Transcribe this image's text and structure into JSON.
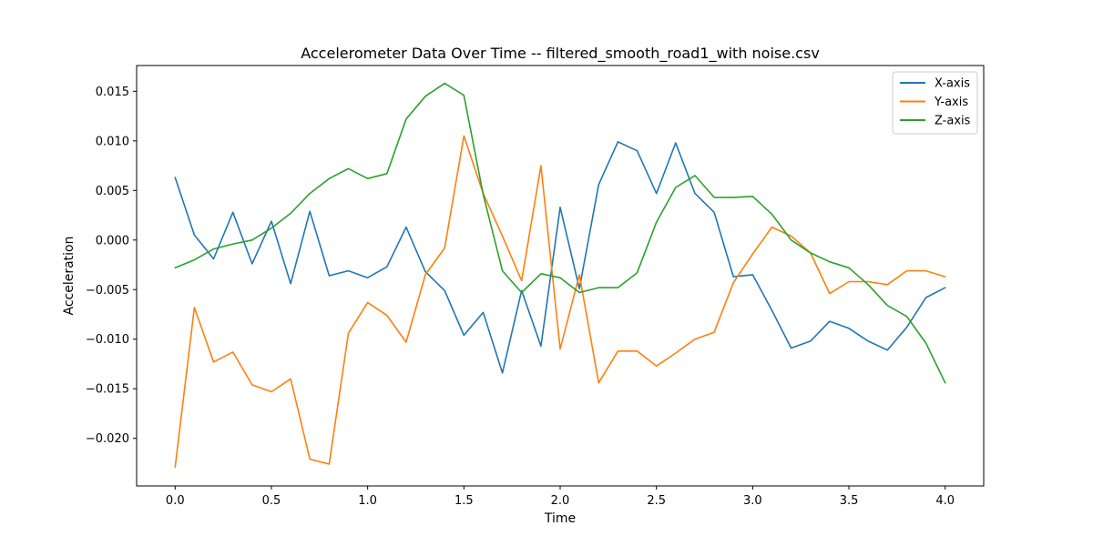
{
  "chart_data": {
    "type": "line",
    "title": "Accelerometer Data Over Time -- filtered_smooth_road1_with noise.csv",
    "xlabel": "Time",
    "ylabel": "Acceleration",
    "xlim": [
      -0.2,
      4.2
    ],
    "ylim": [
      -0.0248,
      0.0176
    ],
    "xticks": [
      0.0,
      0.5,
      1.0,
      1.5,
      2.0,
      2.5,
      3.0,
      3.5,
      4.0
    ],
    "xtick_labels": [
      "0.0",
      "0.5",
      "1.0",
      "1.5",
      "2.0",
      "2.5",
      "3.0",
      "3.5",
      "4.0"
    ],
    "yticks": [
      -0.02,
      -0.015,
      -0.01,
      -0.005,
      0.0,
      0.005,
      0.01,
      0.015
    ],
    "ytick_labels": [
      "−0.020",
      "−0.015",
      "−0.010",
      "−0.005",
      "0.000",
      "0.005",
      "0.010",
      "0.015"
    ],
    "grid": false,
    "legend_position": "top-right",
    "x": [
      0.0,
      0.1,
      0.2,
      0.3,
      0.4,
      0.5,
      0.6,
      0.7,
      0.8,
      0.9,
      1.0,
      1.1,
      1.2,
      1.3,
      1.4,
      1.5,
      1.6,
      1.7,
      1.8,
      1.9,
      2.0,
      2.1,
      2.2,
      2.3,
      2.4,
      2.5,
      2.6,
      2.7,
      2.8,
      2.9,
      3.0,
      3.1,
      3.2,
      3.3,
      3.4,
      3.5,
      3.6,
      3.7,
      3.8,
      3.9,
      4.0
    ],
    "series": [
      {
        "name": "X-axis",
        "color": "#1f77b4",
        "values": [
          0.0063,
          0.0005,
          -0.0019,
          0.0028,
          -0.0024,
          0.0019,
          -0.0044,
          0.0029,
          -0.0036,
          -0.0031,
          -0.0038,
          -0.0027,
          0.0013,
          -0.0032,
          -0.0051,
          -0.0096,
          -0.0073,
          -0.0134,
          -0.0051,
          -0.0107,
          0.0033,
          -0.0049,
          0.0056,
          0.0099,
          0.009,
          0.0047,
          0.0098,
          0.0047,
          0.0028,
          -0.0037,
          -0.0035,
          -0.0071,
          -0.0109,
          -0.0102,
          -0.0082,
          -0.0089,
          -0.0102,
          -0.0111,
          -0.0088,
          -0.0058,
          -0.0048
        ]
      },
      {
        "name": "Y-axis",
        "color": "#ff7f0e",
        "values": [
          -0.0229,
          -0.0068,
          -0.0123,
          -0.0113,
          -0.0146,
          -0.0153,
          -0.014,
          -0.0221,
          -0.0226,
          -0.0094,
          -0.0063,
          -0.0076,
          -0.0103,
          -0.0035,
          -0.0008,
          0.0105,
          0.0047,
          0.0004,
          -0.0041,
          0.0075,
          -0.011,
          -0.0035,
          -0.0144,
          -0.0112,
          -0.0112,
          -0.0127,
          -0.0114,
          -0.01,
          -0.0093,
          -0.0043,
          -0.0014,
          0.0013,
          0.0004,
          -0.0013,
          -0.0054,
          -0.0042,
          -0.0042,
          -0.0045,
          -0.0031,
          -0.0031,
          -0.0037
        ]
      },
      {
        "name": "Z-axis",
        "color": "#2ca02c",
        "values": [
          -0.0028,
          -0.002,
          -0.0009,
          -0.0004,
          0.0,
          0.0012,
          0.0027,
          0.0047,
          0.0062,
          0.0072,
          0.0062,
          0.0067,
          0.0122,
          0.0145,
          0.0158,
          0.0146,
          0.0046,
          -0.0031,
          -0.0053,
          -0.0034,
          -0.0038,
          -0.0053,
          -0.0048,
          -0.0048,
          -0.0033,
          0.0018,
          0.0053,
          0.0065,
          0.0043,
          0.0043,
          0.0044,
          0.0026,
          0.0,
          -0.0013,
          -0.0022,
          -0.0028,
          -0.0045,
          -0.0066,
          -0.0077,
          -0.0104,
          -0.0144
        ]
      }
    ]
  }
}
